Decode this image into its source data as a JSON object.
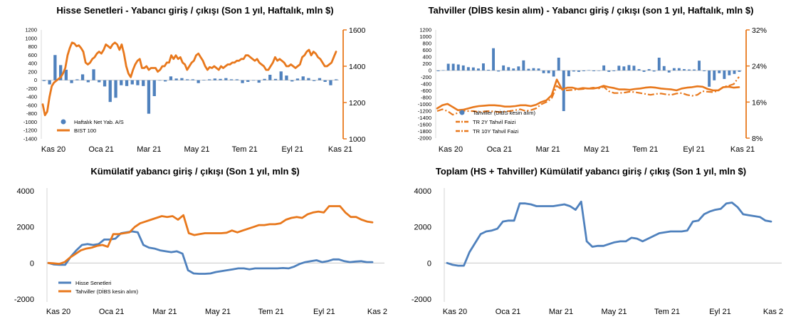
{
  "chart_data": [
    {
      "id": "p1",
      "type": "bar+line",
      "title": "Hisse Senetleri - Yabancı giriş / çıkışı (Son 1 yıl, Haftalık, mln $)",
      "x_labels": [
        "Kas 20",
        "Oca 21",
        "Mar 21",
        "May 21",
        "Tem 21",
        "Eyl 21",
        "Kas 21"
      ],
      "y_left": {
        "min": -1400,
        "max": 1200,
        "step": 200,
        "ticks": [
          "1200",
          "1000",
          "800",
          "600",
          "400",
          "200",
          "0",
          "-200",
          "-400",
          "-600",
          "-800",
          "-1000",
          "-1200",
          "-1400"
        ]
      },
      "y_right": {
        "min": 1000,
        "max": 1600,
        "ticks": [
          "1600",
          "1400",
          "1200",
          "1000"
        ],
        "color": "#e8781c"
      },
      "legend": [
        {
          "name": "Haftalık Net Yab. A/S",
          "marker": "dot",
          "color": "#4f81bd"
        },
        {
          "name": "BIST 100",
          "marker": "line",
          "color": "#e8781c"
        }
      ],
      "bars": {
        "name": "Haftalık Net Yab. A/S",
        "color": "#4f81bd",
        "values": [
          -20,
          -100,
          600,
          360,
          250,
          -70,
          20,
          140,
          -50,
          260,
          -50,
          -150,
          -520,
          -420,
          -120,
          -140,
          -100,
          -120,
          -140,
          -800,
          -380,
          -10,
          -30,
          90,
          40,
          50,
          20,
          20,
          -70,
          10,
          20,
          40,
          30,
          50,
          20,
          20,
          -70,
          -40,
          -10,
          -60,
          30,
          130,
          30,
          210,
          110,
          -30,
          40,
          90,
          50,
          -20,
          50,
          -40,
          -120,
          20
        ]
      },
      "line": {
        "name": "BIST 100",
        "color": "#e8781c",
        "values": [
          1190,
          1130,
          1150,
          1230,
          1290,
          1310,
          1320,
          1330,
          1340,
          1360,
          1390,
          1460,
          1500,
          1530,
          1525,
          1510,
          1515,
          1500,
          1480,
          1420,
          1410,
          1420,
          1440,
          1450,
          1470,
          1480,
          1470,
          1490,
          1520,
          1510,
          1500,
          1520,
          1530,
          1520,
          1490,
          1520,
          1470,
          1400,
          1360,
          1340,
          1380,
          1410,
          1430,
          1440,
          1390,
          1390,
          1400,
          1380,
          1390,
          1390,
          1390,
          1370,
          1380,
          1400,
          1400,
          1420,
          1420,
          1460,
          1440,
          1460,
          1440,
          1450,
          1420,
          1410,
          1380,
          1400,
          1420,
          1430,
          1460,
          1470,
          1450,
          1430,
          1400,
          1380,
          1395,
          1390,
          1400,
          1390,
          1380,
          1400,
          1390,
          1400,
          1410,
          1410,
          1420,
          1420,
          1430,
          1430,
          1440,
          1440,
          1460,
          1460,
          1450,
          1440,
          1430,
          1440,
          1420,
          1410,
          1400,
          1380,
          1380,
          1400,
          1420,
          1450,
          1430,
          1440,
          1430,
          1420,
          1400,
          1400,
          1410,
          1400,
          1390,
          1400,
          1410,
          1450,
          1460,
          1480,
          1490,
          1460,
          1480,
          1470,
          1450,
          1440,
          1420,
          1400,
          1400,
          1410,
          1420,
          1450,
          1480
        ]
      }
    },
    {
      "id": "p2",
      "type": "bar+line",
      "title": "Tahviller (DİBS kesin alım) - Yabancı giriş / çıkışı (son 1 yıl, Haftalık, mln $)",
      "x_labels": [
        "Kas 20",
        "Oca 21",
        "Mar 21",
        "May 21",
        "Tem 21",
        "Eyl 21",
        "Kas 21"
      ],
      "y_left": {
        "min": -2000,
        "max": 1200,
        "step": 200,
        "ticks": [
          "1200",
          "1000",
          "800",
          "600",
          "400",
          "200",
          "0",
          "-200",
          "-400",
          "-600",
          "-800",
          "-1000",
          "-1200",
          "-1400",
          "-1600",
          "-1800",
          "-2000"
        ]
      },
      "y_right": {
        "min": 8,
        "max": 32,
        "ticks": [
          "32%",
          "24%",
          "16%",
          "8%"
        ],
        "color": "#e8781c"
      },
      "legend": [
        {
          "name": "Tahviller (DİBS kesin alım)",
          "marker": "dot",
          "color": "#4f81bd"
        },
        {
          "name": "TR 2Y Tahvil Faizi",
          "marker": "dashdot",
          "color": "#e8781c"
        },
        {
          "name": "TR 10Y Tahvil Faizi",
          "marker": "dashdot",
          "color": "#e8781c"
        }
      ],
      "bars": {
        "name": "Tahviller (DİBS kesin alım)",
        "color": "#4f81bd",
        "values": [
          -20,
          10,
          200,
          200,
          180,
          150,
          100,
          90,
          60,
          210,
          20,
          660,
          -30,
          150,
          100,
          60,
          120,
          300,
          50,
          70,
          60,
          -80,
          -80,
          -180,
          380,
          -1200,
          -170,
          -30,
          -40,
          -20,
          10,
          -20,
          -10,
          150,
          -40,
          -20,
          140,
          120,
          160,
          140,
          40,
          -40,
          40,
          -30,
          380,
          130,
          -60,
          70,
          70,
          40,
          30,
          30,
          290,
          -20,
          -480,
          -290,
          -80,
          -250,
          -140,
          -100,
          -40
        ]
      },
      "line": {
        "name": "TR 2Y Tahvil Faizi",
        "color": "#e8781c",
        "values": [
          14.6,
          15.3,
          15.6,
          14.9,
          14.2,
          14.3,
          14.6,
          14.9,
          15.1,
          15.2,
          15.3,
          15.3,
          15.2,
          15.0,
          15.0,
          15.1,
          15.3,
          15.3,
          15.1,
          15.4,
          16.0,
          16.4,
          17.5,
          21.0,
          18.8,
          19.2,
          19.2,
          18.9,
          19.1,
          19.0,
          19.0,
          19.2,
          19.6,
          19.3,
          19.1,
          18.8,
          18.8,
          18.7,
          18.9,
          19.0,
          19.2,
          19.3,
          19.2,
          19.0,
          18.9,
          18.8,
          18.6,
          19.0,
          19.2,
          19.3,
          19.5,
          19.4,
          18.9,
          18.6,
          18.6,
          19.3,
          19.4,
          19.2,
          19.3
        ]
      },
      "line2": {
        "name": "TR 10Y Tahvil Faizi",
        "color": "#e8781c",
        "values": [
          14.0,
          14.4,
          14.0,
          13.2,
          13.6,
          14.1,
          14.0,
          14.0,
          13.8,
          13.9,
          14.0,
          13.9,
          13.8,
          13.9,
          14.0,
          14.2,
          14.4,
          14.0,
          14.2,
          14.6,
          15.5,
          16.0,
          16.8,
          19.6,
          18.7,
          18.6,
          18.7,
          18.8,
          18.9,
          19.0,
          19.2,
          19.0,
          19.4,
          18.4,
          18.0,
          18.0,
          18.1,
          18.3,
          18.2,
          18.0,
          17.8,
          17.6,
          17.8,
          17.9,
          17.7,
          17.6,
          17.9,
          18.0,
          17.6,
          17.4,
          17.6,
          18.4,
          18.3,
          18.2,
          18.5,
          19.4,
          19.6,
          20.0,
          21.6
        ]
      }
    },
    {
      "id": "p3",
      "type": "line",
      "title": "Kümülatif yabancı giriş / çıkışı (Son 1 yıl, mln $)",
      "x_labels": [
        "Kas 20",
        "Oca 21",
        "Mar 21",
        "May 21",
        "Tem 21",
        "Eyl 21",
        "Kas 2"
      ],
      "y": {
        "min": -2000,
        "max": 4000,
        "ticks": [
          "4000",
          "2000",
          "0",
          "-2000"
        ]
      },
      "legend": [
        {
          "name": "Hisse Senetleri",
          "color": "#4f81bd"
        },
        {
          "name": "Tahviller (DİBS kesin alım)",
          "color": "#e8781c"
        }
      ],
      "series": [
        {
          "name": "Hisse Senetleri",
          "color": "#4f81bd",
          "values": [
            0,
            -80,
            -100,
            -100,
            350,
            700,
            1000,
            1050,
            1000,
            1050,
            1300,
            1300,
            1350,
            1650,
            1700,
            1750,
            1700,
            1000,
            850,
            800,
            700,
            650,
            600,
            650,
            520,
            -400,
            -580,
            -600,
            -600,
            -580,
            -500,
            -450,
            -400,
            -350,
            -300,
            -300,
            -350,
            -300,
            -300,
            -300,
            -300,
            -300,
            -280,
            -300,
            -200,
            -50,
            50,
            100,
            150,
            50,
            100,
            200,
            200,
            100,
            50,
            80,
            100,
            50,
            50
          ]
        },
        {
          "name": "Tahviller (DİBS kesin alım)",
          "color": "#e8781c",
          "values": [
            0,
            -20,
            -50,
            50,
            300,
            500,
            700,
            800,
            850,
            950,
            1000,
            900,
            1600,
            1600,
            1650,
            1700,
            2000,
            2200,
            2300,
            2400,
            2500,
            2600,
            2550,
            2600,
            2400,
            2650,
            1650,
            1550,
            1600,
            1650,
            1650,
            1650,
            1650,
            1680,
            1800,
            1700,
            1800,
            1900,
            2000,
            2100,
            2100,
            2150,
            2150,
            2200,
            2400,
            2500,
            2550,
            2500,
            2700,
            2800,
            2850,
            2800,
            3150,
            3150,
            3150,
            2800,
            2550,
            2550,
            2400,
            2300,
            2250
          ]
        }
      ]
    },
    {
      "id": "p4",
      "type": "line",
      "title": "Toplam (HS + Tahviller) Kümülatif yabancı giriş / çıkış (Son 1 yıl, mln $)",
      "x_labels": [
        "Kas 20",
        "Oca 21",
        "Mar 21",
        "May 21",
        "Tem 21",
        "Eyl 21",
        "Kas 2"
      ],
      "y": {
        "min": -2000,
        "max": 4000,
        "ticks": [
          "4000",
          "2000",
          "0",
          "-2000"
        ]
      },
      "series": [
        {
          "name": "Toplam",
          "color": "#4f81bd",
          "values": [
            0,
            -100,
            -150,
            -150,
            600,
            1100,
            1600,
            1750,
            1800,
            1900,
            2300,
            2350,
            2350,
            3300,
            3300,
            3250,
            3150,
            3150,
            3150,
            3150,
            3200,
            3250,
            3150,
            2950,
            3400,
            1200,
            900,
            950,
            950,
            1050,
            1150,
            1200,
            1200,
            1400,
            1350,
            1200,
            1350,
            1500,
            1650,
            1700,
            1750,
            1750,
            1750,
            1800,
            2300,
            2350,
            2700,
            2850,
            2950,
            3000,
            3300,
            3350,
            3100,
            2700,
            2650,
            2600,
            2550,
            2350,
            2300
          ]
        }
      ]
    }
  ]
}
